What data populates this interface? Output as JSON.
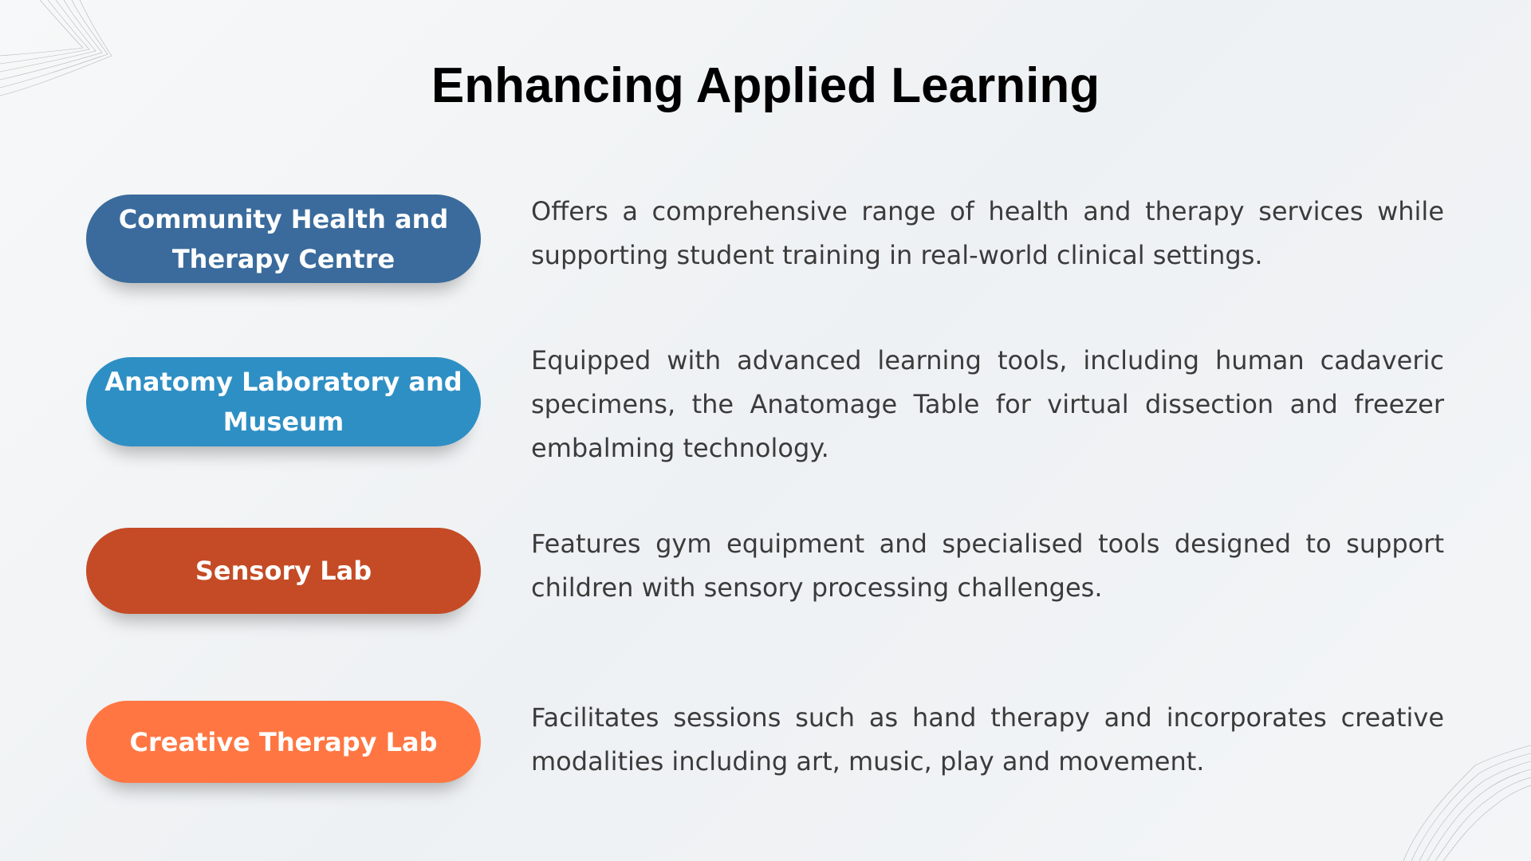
{
  "title": "Enhancing Applied Learning",
  "items": [
    {
      "label": "Community Health and Therapy Centre",
      "color": "#3a6b9c",
      "description": "Offers a comprehensive range of health and therapy services while supporting student training in real-world clinical settings."
    },
    {
      "label": "Anatomy Laboratory and Museum",
      "color": "#2e8fc4",
      "description": "Equipped with advanced learning tools, including human cadaveric specimens, the Anatomage Table for virtual dissection and freezer embalming technology."
    },
    {
      "label": "Sensory Lab",
      "color": "#c44b26",
      "description": "Features gym equipment and specialised tools designed to support children with sensory processing challenges."
    },
    {
      "label": "Creative Therapy Lab",
      "color": "#ff7642",
      "description": "Facilitates sessions such as hand therapy and incorporates creative modalities including art, music, play and movement."
    }
  ]
}
